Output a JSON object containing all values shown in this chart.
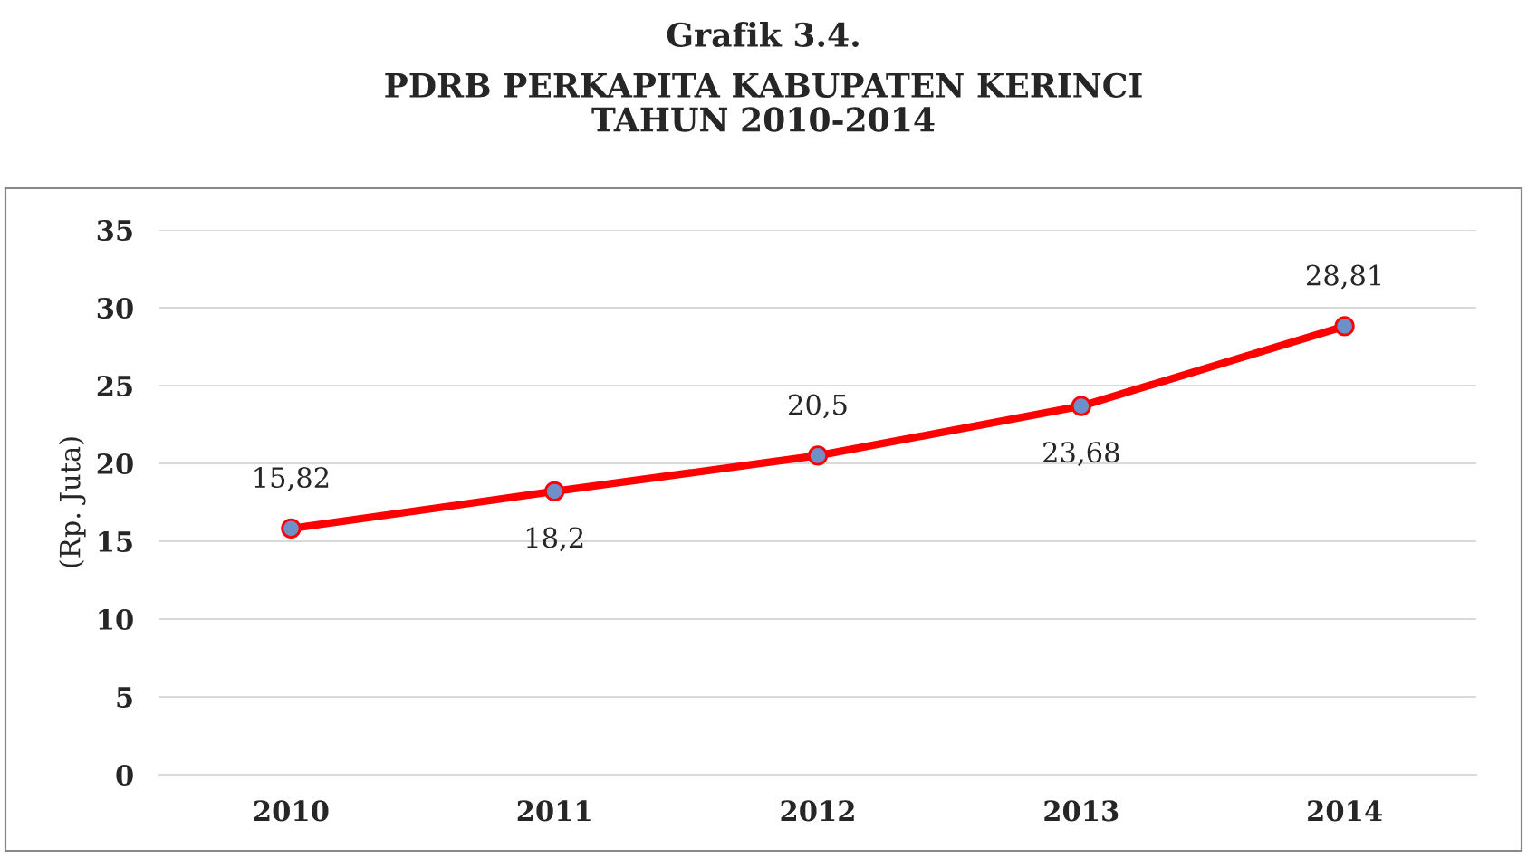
{
  "chart_data": {
    "type": "line",
    "title": "Grafik 3.4.",
    "subtitle": "PDRB PERKAPITA KABUPATEN KERINCI\nTAHUN 2010-2014",
    "ylabel": "(Rp. Juta)",
    "categories": [
      "2010",
      "2011",
      "2012",
      "2013",
      "2014"
    ],
    "series": [
      {
        "color": "#ff0000",
        "values": [
          15.82,
          18.2,
          20.5,
          23.68,
          28.81
        ],
        "value_labels": [
          "15,82",
          "18,2",
          "20,5",
          "23,68",
          "28,81"
        ]
      }
    ],
    "ylim": [
      0,
      35
    ],
    "yticks": [
      0,
      5,
      10,
      15,
      20,
      25,
      30,
      35
    ],
    "grid": "y",
    "marker": "circle",
    "line_style": "solid",
    "legend": false
  }
}
